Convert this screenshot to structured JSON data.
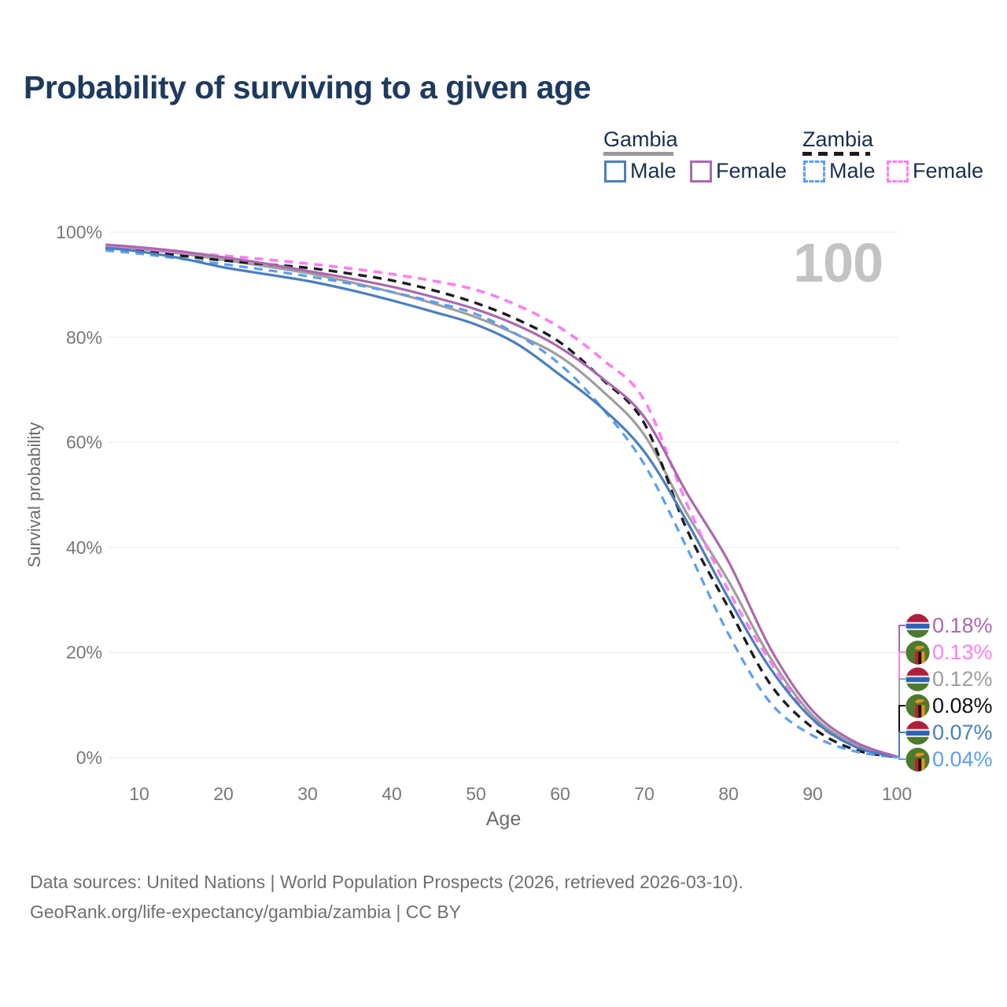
{
  "title": "Probability of surviving to a given age",
  "watermark": {
    "text": "100"
  },
  "legend": {
    "groups": [
      {
        "label": "Gambia",
        "underline_style": "solid",
        "underline_color": "#999999",
        "items": [
          {
            "label": "Male",
            "color": "#4a7ebd",
            "dashed": false
          },
          {
            "label": "Female",
            "color": "#ab68b0",
            "dashed": false
          }
        ]
      },
      {
        "label": "Zambia",
        "underline_style": "dashed",
        "underline_color": "#1c1c1c",
        "items": [
          {
            "label": "Male",
            "color": "#5c9df5",
            "dashed": true
          },
          {
            "label": "Female",
            "color": "#fb7ff1",
            "dashed": true
          }
        ]
      }
    ]
  },
  "chart_data": {
    "type": "line",
    "title": "Probability of surviving to a given age",
    "xlabel": "Age",
    "ylabel": "Survival probability",
    "xlim": [
      0,
      100
    ],
    "ylim_percent": [
      0,
      100
    ],
    "grid": "horizontal",
    "x_ticks": [
      10,
      20,
      30,
      40,
      50,
      60,
      70,
      80,
      90,
      100
    ],
    "y_ticks": [
      {
        "label": "0%",
        "value": 0
      },
      {
        "label": "20%",
        "value": 20
      },
      {
        "label": "40%",
        "value": 40
      },
      {
        "label": "60%",
        "value": 60
      },
      {
        "label": "80%",
        "value": 80
      },
      {
        "label": "100%",
        "value": 100
      }
    ],
    "ages": [
      6,
      10,
      15,
      20,
      25,
      30,
      35,
      40,
      45,
      50,
      55,
      60,
      65,
      70,
      75,
      80,
      85,
      90,
      95,
      100
    ],
    "series": [
      {
        "name": "Gambia (both sexes)",
        "color": "#9e9e9e",
        "dashed": false,
        "width": 3.2,
        "values": [
          97.3,
          96.8,
          95.9,
          94.7,
          93.5,
          92.2,
          90.5,
          88.6,
          86.4,
          83.8,
          80.4,
          76.3,
          69.8,
          61.4,
          46.6,
          33.6,
          18.9,
          8.0,
          2.5,
          0.12
        ]
      },
      {
        "name": "Zambia Female",
        "color": "#fb7ff1",
        "dashed": true,
        "width": 3.6,
        "values": [
          97.1,
          96.7,
          96.1,
          95.5,
          94.8,
          94.0,
          93.1,
          92.0,
          90.7,
          89.0,
          86.0,
          81.8,
          75.8,
          68.0,
          48.5,
          31.8,
          18.2,
          7.2,
          2.2,
          0.13
        ]
      },
      {
        "name": "Zambia (both sexes)",
        "color": "#1c1c1c",
        "dashed": true,
        "width": 3.4,
        "values": [
          96.9,
          96.4,
          95.5,
          94.6,
          93.9,
          93.2,
          92.1,
          90.8,
          88.9,
          86.5,
          83.3,
          79.0,
          72.0,
          63.6,
          43.6,
          28.5,
          13.9,
          5.7,
          1.5,
          0.08
        ]
      },
      {
        "name": "Zambia Male",
        "color": "#5c9df5",
        "dashed": true,
        "width": 3.2,
        "values": [
          96.5,
          95.9,
          94.9,
          93.9,
          92.8,
          91.6,
          90.2,
          88.6,
          86.7,
          84.4,
          80.4,
          74.8,
          66.5,
          55.8,
          40.1,
          23.5,
          10.4,
          4.2,
          1.2,
          0.04
        ]
      },
      {
        "name": "Gambia Male",
        "color": "#4a7ebd",
        "dashed": false,
        "width": 3.2,
        "values": [
          97.0,
          96.3,
          95.0,
          93.3,
          92.0,
          90.7,
          89.0,
          87.0,
          84.8,
          82.4,
          78.6,
          72.8,
          66.5,
          58.2,
          45.1,
          30.3,
          16.9,
          7.3,
          2.1,
          0.07
        ]
      },
      {
        "name": "Gambia Female",
        "color": "#ab68b0",
        "dashed": false,
        "width": 3.2,
        "values": [
          97.6,
          97.1,
          96.3,
          95.2,
          94.0,
          92.6,
          91.2,
          89.6,
          87.6,
          85.3,
          82.2,
          78.0,
          72.2,
          64.8,
          50.5,
          37.3,
          20.7,
          8.9,
          3.0,
          0.18
        ]
      }
    ]
  },
  "end_labels": [
    {
      "flag": "gambia-flag-icon",
      "text": "0.18%",
      "color": "#ab68b0",
      "series": "Gambia Female"
    },
    {
      "flag": "zambia-flag-icon",
      "text": "0.13%",
      "color": "#fb7ff1",
      "series": "Zambia Female"
    },
    {
      "flag": "gambia-flag-icon",
      "text": "0.12%",
      "color": "#9e9e9e",
      "series": "Gambia (both sexes)"
    },
    {
      "flag": "zambia-flag-icon",
      "text": "0.08%",
      "color": "#111111",
      "series": "Zambia (both sexes)"
    },
    {
      "flag": "gambia-flag-icon",
      "text": "0.07%",
      "color": "#4a7ebd",
      "series": "Gambia Male"
    },
    {
      "flag": "zambia-flag-icon",
      "text": "0.04%",
      "color": "#5c9df5",
      "series": "Zambia Male"
    }
  ],
  "footer": {
    "line1": "Data sources: United Nations | World Population Prospects (2026, retrieved 2026-03-10).",
    "line2": "GeoRank.org/life-expectancy/gambia/zambia | CC BY"
  }
}
